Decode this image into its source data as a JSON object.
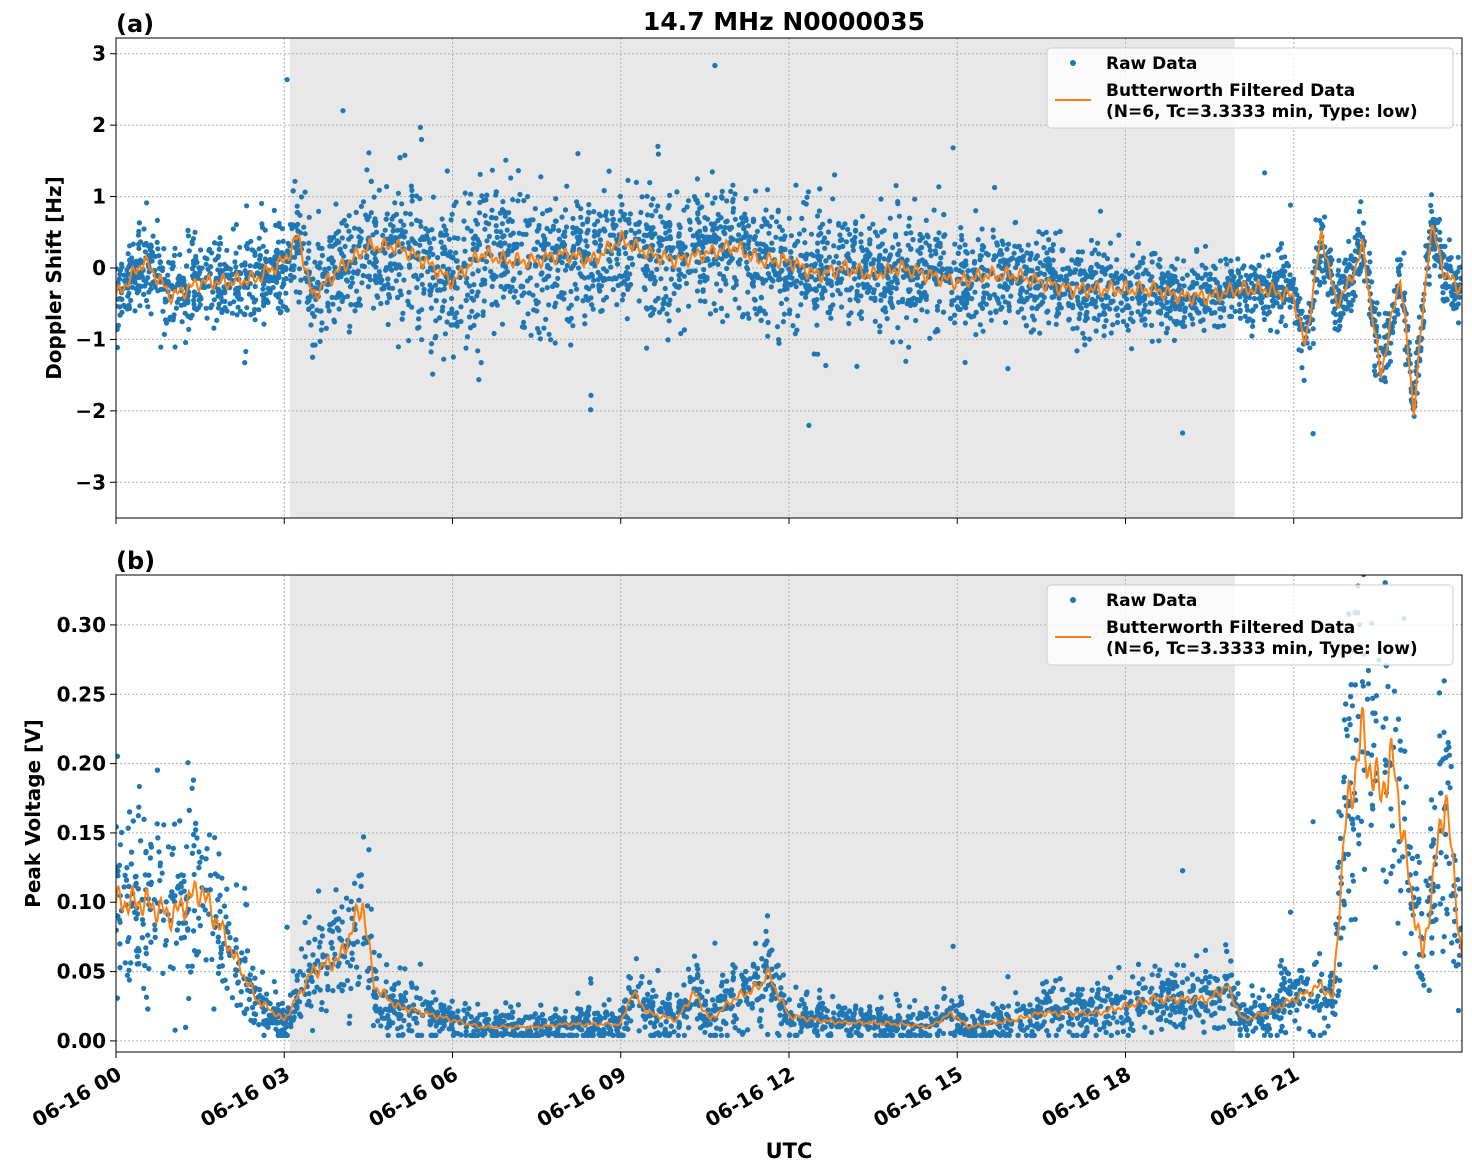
{
  "title": "14.7 MHz N0000035",
  "colors": {
    "raw": "#1f77b4",
    "filtered": "#ff7f0e",
    "shade": "#e8e8e8",
    "grid": "#b0b0b0"
  },
  "chart_data": [
    {
      "type": "scatter",
      "panel_label": "(a)",
      "ylabel": "Doppler Shift [Hz]",
      "xlabel": "",
      "x_unit": "hours UTC on 06-16",
      "xlim": [
        0,
        24
      ],
      "ylim": [
        -3.5,
        3.22
      ],
      "yticks": [
        3,
        2,
        1,
        0,
        -1,
        -2,
        -3
      ],
      "ytick_labels": [
        "3",
        "2",
        "1",
        "0",
        "−1",
        "−2",
        "−3"
      ],
      "grid": true,
      "shaded_interval": [
        3.1,
        19.95
      ],
      "legend": {
        "placement": "upper-right",
        "entries": [
          "Raw Data",
          "Butterworth Filtered Data",
          "(N=6, Tc=3.3333 min, Type: low)"
        ]
      },
      "series": [
        {
          "name": "Raw Data",
          "kind": "scatter",
          "spread_hz": [
            [
              0,
              0.35
            ],
            [
              3,
              0.5
            ],
            [
              6,
              0.8
            ],
            [
              9,
              0.6
            ],
            [
              12,
              0.65
            ],
            [
              16,
              0.45
            ],
            [
              20,
              0.35
            ],
            [
              24,
              0.35
            ]
          ]
        },
        {
          "name": "Butterworth Filtered Data",
          "kind": "line",
          "x": [
            0,
            0.5,
            1,
            1.5,
            2,
            2.5,
            3,
            3.25,
            3.5,
            4,
            4.5,
            5,
            5.5,
            6,
            6.5,
            7,
            7.5,
            8,
            8.5,
            9,
            9.5,
            10,
            10.5,
            11,
            11.5,
            12,
            12.5,
            13,
            13.5,
            14,
            14.5,
            15,
            15.5,
            16,
            16.5,
            17,
            17.5,
            18,
            18.5,
            19,
            19.5,
            20,
            20.5,
            21,
            21.2,
            21.5,
            21.75,
            22,
            22.23,
            22.55,
            22.9,
            23.14,
            23.45,
            23.7,
            24
          ],
          "y": [
            -0.4,
            0.1,
            -0.4,
            -0.2,
            -0.2,
            -0.15,
            0.1,
            0.45,
            -0.4,
            0.0,
            0.3,
            0.3,
            0.1,
            -0.2,
            0.2,
            0.1,
            0.1,
            0.2,
            0.1,
            0.4,
            0.2,
            0.1,
            0.2,
            0.3,
            0.1,
            0.1,
            -0.1,
            0.0,
            -0.1,
            0.0,
            -0.1,
            -0.2,
            -0.1,
            -0.1,
            -0.2,
            -0.3,
            -0.3,
            -0.3,
            -0.3,
            -0.4,
            -0.4,
            -0.3,
            -0.3,
            -0.4,
            -1.1,
            0.5,
            -0.5,
            -0.2,
            0.3,
            -1.5,
            -0.1,
            -2.0,
            0.6,
            -0.1,
            -0.3
          ]
        }
      ]
    },
    {
      "type": "scatter",
      "panel_label": "(b)",
      "ylabel": "Peak Voltage [V]",
      "xlabel": "UTC",
      "x_unit": "hours UTC on 06-16",
      "xlim": [
        0,
        24
      ],
      "ylim": [
        -0.008,
        0.336
      ],
      "yticks": [
        0,
        0.05,
        0.1,
        0.15,
        0.2,
        0.25,
        0.3
      ],
      "ytick_labels": [
        "0.00",
        "0.05",
        "0.10",
        "0.15",
        "0.20",
        "0.25",
        "0.30"
      ],
      "xticks": [
        0,
        3,
        6,
        9,
        12,
        15,
        18,
        21
      ],
      "xtick_labels": [
        "06-16 00",
        "06-16 03",
        "06-16 06",
        "06-16 09",
        "06-16 12",
        "06-16 15",
        "06-16 18",
        "06-16 21"
      ],
      "grid": true,
      "shaded_interval": [
        3.1,
        19.95
      ],
      "legend": {
        "placement": "upper-right",
        "entries": [
          "Raw Data",
          "Butterworth Filtered Data",
          "(N=6, Tc=3.3333 min, Type: low)"
        ]
      },
      "series": [
        {
          "name": "Raw Data",
          "kind": "scatter",
          "relative_spread": 0.4
        },
        {
          "name": "Butterworth Filtered Data",
          "kind": "line",
          "x": [
            0,
            0.5,
            1,
            1.5,
            2,
            2.5,
            3,
            3.5,
            4,
            4.4,
            4.6,
            5,
            5.5,
            6,
            6.5,
            7,
            7.5,
            8,
            8.5,
            9,
            9.2,
            9.5,
            10,
            10.3,
            10.6,
            11,
            11.5,
            11.6,
            12,
            12.5,
            13,
            13.5,
            14,
            14.5,
            14.9,
            15.2,
            16,
            16.5,
            17,
            17.5,
            18,
            18.5,
            19,
            19.5,
            19.8,
            20.1,
            20.5,
            21,
            21.5,
            21.7,
            21.9,
            22.2,
            22.5,
            22.8,
            23,
            23.3,
            23.7,
            24
          ],
          "y": [
            0.1,
            0.1,
            0.09,
            0.11,
            0.07,
            0.03,
            0.015,
            0.05,
            0.06,
            0.1,
            0.04,
            0.025,
            0.02,
            0.015,
            0.01,
            0.01,
            0.01,
            0.012,
            0.012,
            0.012,
            0.035,
            0.02,
            0.015,
            0.035,
            0.015,
            0.03,
            0.04,
            0.05,
            0.018,
            0.015,
            0.013,
            0.013,
            0.012,
            0.01,
            0.02,
            0.01,
            0.015,
            0.02,
            0.02,
            0.02,
            0.025,
            0.03,
            0.03,
            0.03,
            0.04,
            0.015,
            0.02,
            0.03,
            0.04,
            0.03,
            0.15,
            0.22,
            0.18,
            0.2,
            0.13,
            0.06,
            0.18,
            0.06
          ]
        }
      ]
    }
  ]
}
